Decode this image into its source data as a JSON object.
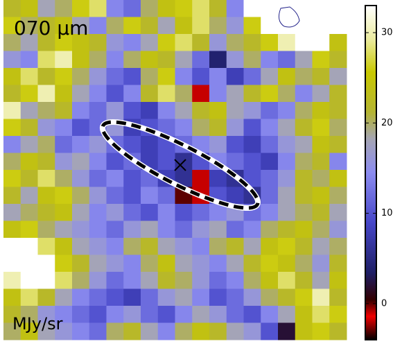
{
  "chart_data": {
    "type": "heatmap",
    "title": "070 μm",
    "colorbar_label": "MJy/sr",
    "zlim": [
      -4,
      33
    ],
    "zticks": [
      0,
      10,
      20,
      30
    ],
    "z": [
      [
        22,
        24,
        18,
        20,
        26,
        28,
        14,
        12,
        20,
        24,
        26,
        28,
        22,
        14,
        33,
        33,
        33,
        33,
        33,
        33
      ],
      [
        26,
        20,
        22,
        24,
        18,
        14,
        20,
        26,
        22,
        18,
        24,
        28,
        20,
        16,
        26,
        33,
        33,
        33,
        33,
        33
      ],
      [
        20,
        18,
        22,
        26,
        24,
        22,
        16,
        14,
        18,
        26,
        28,
        22,
        16,
        20,
        22,
        26,
        30,
        33,
        33,
        24
      ],
      [
        16,
        14,
        28,
        30,
        24,
        20,
        14,
        20,
        24,
        22,
        18,
        12,
        4,
        16,
        20,
        14,
        12,
        18,
        26,
        22
      ],
      [
        24,
        28,
        22,
        26,
        20,
        16,
        12,
        10,
        20,
        26,
        14,
        10,
        14,
        8,
        12,
        18,
        24,
        20,
        22,
        18
      ],
      [
        22,
        26,
        30,
        24,
        18,
        14,
        10,
        14,
        22,
        28,
        20,
        -1,
        14,
        18,
        22,
        26,
        20,
        14,
        18,
        22
      ],
      [
        30,
        18,
        20,
        22,
        14,
        12,
        16,
        10,
        8,
        14,
        18,
        22,
        24,
        18,
        16,
        12,
        14,
        20,
        24,
        22
      ],
      [
        26,
        22,
        16,
        14,
        10,
        12,
        16,
        8,
        10,
        12,
        14,
        20,
        22,
        16,
        10,
        14,
        18,
        22,
        26,
        20
      ],
      [
        14,
        18,
        20,
        12,
        14,
        16,
        12,
        10,
        8,
        10,
        12,
        14,
        16,
        10,
        8,
        12,
        16,
        18,
        24,
        22
      ],
      [
        20,
        24,
        22,
        16,
        18,
        14,
        10,
        12,
        8,
        10,
        6,
        10,
        14,
        12,
        10,
        8,
        14,
        20,
        22,
        14
      ],
      [
        26,
        22,
        28,
        20,
        16,
        12,
        14,
        10,
        12,
        8,
        6,
        -1,
        8,
        6,
        10,
        12,
        16,
        22,
        20,
        24
      ],
      [
        22,
        18,
        24,
        26,
        20,
        16,
        12,
        10,
        14,
        12,
        -3,
        -1,
        10,
        8,
        6,
        12,
        18,
        22,
        24,
        20
      ],
      [
        18,
        20,
        22,
        24,
        18,
        14,
        16,
        12,
        10,
        14,
        10,
        12,
        14,
        16,
        12,
        14,
        18,
        20,
        22,
        18
      ],
      [
        24,
        26,
        20,
        18,
        16,
        14,
        12,
        16,
        18,
        14,
        12,
        16,
        18,
        12,
        14,
        20,
        22,
        24,
        20,
        16
      ],
      [
        33,
        33,
        28,
        24,
        18,
        16,
        14,
        20,
        22,
        18,
        16,
        14,
        20,
        22,
        18,
        24,
        26,
        22,
        18,
        20
      ],
      [
        33,
        33,
        33,
        26,
        22,
        18,
        16,
        14,
        20,
        24,
        18,
        16,
        14,
        18,
        22,
        26,
        24,
        20,
        16,
        22
      ],
      [
        30,
        33,
        33,
        28,
        20,
        16,
        12,
        14,
        18,
        22,
        20,
        16,
        12,
        14,
        20,
        24,
        28,
        22,
        18,
        24
      ],
      [
        24,
        28,
        22,
        18,
        14,
        12,
        10,
        8,
        12,
        16,
        18,
        14,
        10,
        12,
        16,
        20,
        22,
        26,
        30,
        22
      ],
      [
        22,
        20,
        16,
        14,
        12,
        10,
        14,
        16,
        12,
        10,
        14,
        18,
        16,
        12,
        10,
        14,
        18,
        24,
        28,
        26
      ],
      [
        20,
        24,
        18,
        16,
        14,
        12,
        20,
        22,
        18,
        14,
        20,
        24,
        22,
        18,
        16,
        10,
        2,
        24,
        26,
        22
      ]
    ]
  }
}
